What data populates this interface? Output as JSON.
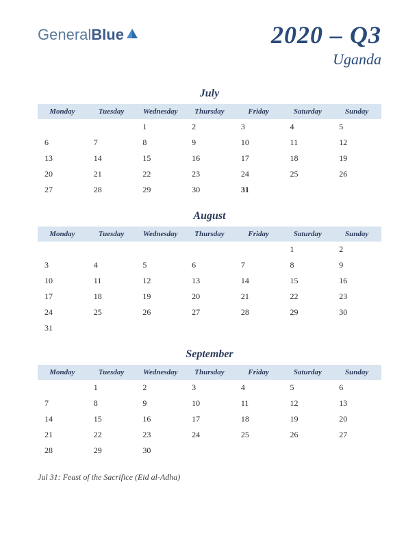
{
  "logo": {
    "text1": "General",
    "text2": "Blue",
    "color1": "#5a7a9a",
    "color2": "#3a5a8a",
    "icon_color": "#2a6aaa"
  },
  "title": {
    "main": "2020 – Q3",
    "sub": "Uganda",
    "color": "#2a4a7a"
  },
  "day_headers": [
    "Monday",
    "Tuesday",
    "Wednesday",
    "Thursday",
    "Friday",
    "Saturday",
    "Sunday"
  ],
  "header_bg": "#d8e4f0",
  "text_color": "#2a2a2a",
  "holiday_color": "#c02020",
  "months": [
    {
      "name": "July",
      "weeks": [
        [
          "",
          "",
          "1",
          "2",
          "3",
          "4",
          "5"
        ],
        [
          "6",
          "7",
          "8",
          "9",
          "10",
          "11",
          "12"
        ],
        [
          "13",
          "14",
          "15",
          "16",
          "17",
          "18",
          "19"
        ],
        [
          "20",
          "21",
          "22",
          "23",
          "24",
          "25",
          "26"
        ],
        [
          "27",
          "28",
          "29",
          "30",
          "31",
          "",
          ""
        ]
      ],
      "holidays": [
        "31"
      ]
    },
    {
      "name": "August",
      "weeks": [
        [
          "",
          "",
          "",
          "",
          "",
          "1",
          "2"
        ],
        [
          "3",
          "4",
          "5",
          "6",
          "7",
          "8",
          "9"
        ],
        [
          "10",
          "11",
          "12",
          "13",
          "14",
          "15",
          "16"
        ],
        [
          "17",
          "18",
          "19",
          "20",
          "21",
          "22",
          "23"
        ],
        [
          "24",
          "25",
          "26",
          "27",
          "28",
          "29",
          "30"
        ],
        [
          "31",
          "",
          "",
          "",
          "",
          "",
          ""
        ]
      ],
      "holidays": []
    },
    {
      "name": "September",
      "weeks": [
        [
          "",
          "1",
          "2",
          "3",
          "4",
          "5",
          "6"
        ],
        [
          "7",
          "8",
          "9",
          "10",
          "11",
          "12",
          "13"
        ],
        [
          "14",
          "15",
          "16",
          "17",
          "18",
          "19",
          "20"
        ],
        [
          "21",
          "22",
          "23",
          "24",
          "25",
          "26",
          "27"
        ],
        [
          "28",
          "29",
          "30",
          "",
          "",
          "",
          ""
        ]
      ],
      "holidays": []
    }
  ],
  "footer": "Jul 31: Feast of the Sacrifice (Eid al-Adha)"
}
